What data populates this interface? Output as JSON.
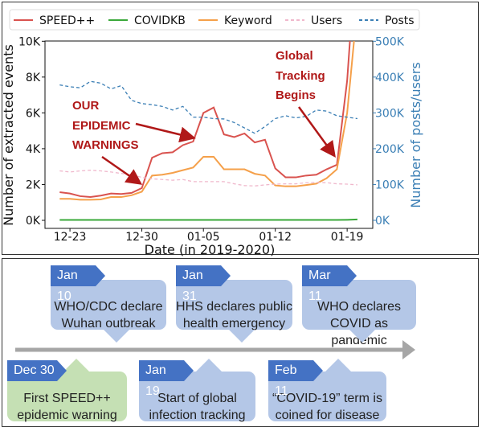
{
  "chart_data": {
    "type": "line",
    "title": "",
    "xlabel": "Date (in 2019-2020)",
    "ylabel": "Number of extracted events",
    "ylabel_right": "Number of posts/users",
    "x": [
      "12-22",
      "12-23",
      "12-24",
      "12-25",
      "12-26",
      "12-27",
      "12-28",
      "12-29",
      "12-30",
      "12-31",
      "01-01",
      "01-02",
      "01-03",
      "01-04",
      "01-05",
      "01-06",
      "01-07",
      "01-08",
      "01-09",
      "01-10",
      "01-11",
      "01-12",
      "01-13",
      "01-14",
      "01-15",
      "01-16",
      "01-17",
      "01-18",
      "01-19",
      "01-20"
    ],
    "xticks": [
      "12-23",
      "12-30",
      "01-05",
      "01-12",
      "01-19"
    ],
    "yticks_left": [
      "0K",
      "2K",
      "4K",
      "6K",
      "8K",
      "10K"
    ],
    "yticks_right": [
      "0K",
      "100K",
      "200K",
      "300K",
      "400K",
      "500K"
    ],
    "ylim_left": [
      0,
      10
    ],
    "ylim_right": [
      0,
      500
    ],
    "legend_placement": "top",
    "series": [
      {
        "name": "SPEED++",
        "axis": "left",
        "unit": "K",
        "color": "#d9534f",
        "dash": false,
        "values": [
          1.57,
          1.5,
          1.35,
          1.3,
          1.38,
          1.5,
          1.47,
          1.53,
          1.8,
          3.5,
          3.75,
          3.8,
          4.2,
          4.4,
          6.0,
          6.3,
          4.8,
          4.65,
          4.85,
          4.35,
          4.5,
          2.9,
          2.4,
          2.4,
          2.5,
          2.55,
          2.85,
          3.1,
          7.8,
          16
        ]
      },
      {
        "name": "COVIDKB",
        "axis": "left",
        "unit": "K",
        "color": "#3aa83a",
        "dash": false,
        "values": [
          0.02,
          0.02,
          0.02,
          0.02,
          0.02,
          0.02,
          0.02,
          0.02,
          0.02,
          0.02,
          0.02,
          0.02,
          0.02,
          0.02,
          0.02,
          0.02,
          0.02,
          0.02,
          0.02,
          0.02,
          0.02,
          0.02,
          0.02,
          0.02,
          0.02,
          0.02,
          0.02,
          0.02,
          0.03,
          0.05
        ]
      },
      {
        "name": "Keyword",
        "axis": "left",
        "unit": "K",
        "color": "#f5a04a",
        "dash": false,
        "values": [
          1.2,
          1.2,
          1.15,
          1.15,
          1.17,
          1.3,
          1.3,
          1.4,
          1.6,
          2.5,
          2.55,
          2.65,
          2.8,
          2.95,
          3.55,
          3.55,
          2.85,
          2.85,
          2.85,
          2.6,
          2.5,
          1.95,
          1.9,
          1.9,
          1.97,
          2.05,
          2.35,
          2.85,
          6.0,
          12
        ]
      },
      {
        "name": "Users",
        "axis": "right",
        "unit": "K",
        "color": "#f0b8cc",
        "dash": true,
        "values": [
          138,
          135,
          138,
          140,
          138,
          135,
          131,
          127,
          120,
          116,
          114,
          112,
          114,
          108,
          108,
          108,
          108,
          102,
          97,
          96,
          99,
          101,
          102,
          102,
          105,
          106,
          105,
          102,
          101,
          99
        ]
      },
      {
        "name": "Posts",
        "axis": "right",
        "unit": "K",
        "color": "#3b7fb5",
        "dash": true,
        "values": [
          378,
          373,
          370,
          388,
          383,
          367,
          376,
          335,
          326,
          323,
          318,
          308,
          318,
          288,
          288,
          284,
          283,
          273,
          258,
          243,
          262,
          284,
          292,
          286,
          290,
          308,
          305,
          292,
          288,
          284
        ]
      }
    ],
    "annotations": [
      {
        "lines": [
          "OUR",
          "EPIDEMIC",
          "WARNINGS"
        ]
      },
      {
        "lines": [
          "Global",
          "Tracking",
          "Begins"
        ]
      }
    ]
  },
  "timeline": {
    "events": [
      {
        "date": "Jan 10",
        "lines": [
          "WHO/CDC declare",
          "Wuhan outbreak"
        ]
      },
      {
        "date": "Jan 31",
        "lines": [
          "HHS declares public",
          "health emergency"
        ]
      },
      {
        "date": "Mar 11",
        "lines": [
          "WHO declares",
          "COVID as pandemic"
        ]
      },
      {
        "date": "Dec 30",
        "lines": [
          "First SPEED++",
          "epidemic warning"
        ]
      },
      {
        "date": "Jan 19",
        "lines": [
          "Start of global",
          "infection tracking"
        ]
      },
      {
        "date": "Feb 11",
        "lines": [
          "“COVID-19” term is",
          "coined for disease"
        ]
      }
    ],
    "colors": {
      "box": "#b4c7e7",
      "tag": "#4472c4",
      "highlight": "#c5e0b4",
      "axis": "#a6a6a6"
    }
  }
}
